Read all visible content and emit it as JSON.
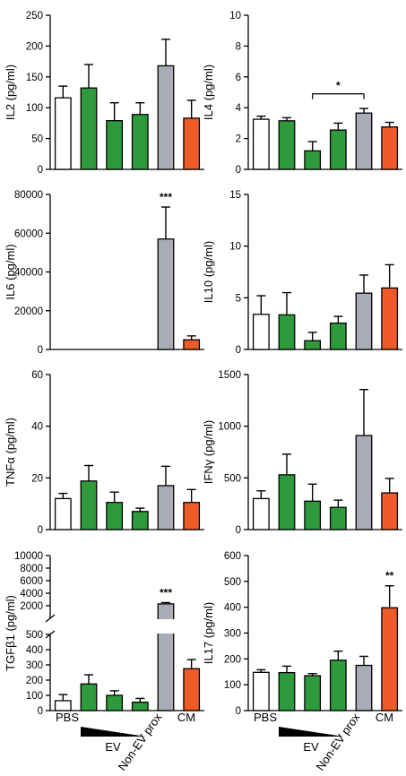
{
  "colors": {
    "pbs": "#ffffff",
    "ev": "#2e9a3c",
    "nonev": "#a9abb5",
    "cm": "#ef5a29",
    "axis": "#000000"
  },
  "x_labels": {
    "pbs": "PBS",
    "ev": "EV",
    "nonev": "Non-EV prox",
    "cm": "CM"
  },
  "chart_data": [
    {
      "type": "bar",
      "ylabel": "IL2 (pg/ml)",
      "ylim": [
        0,
        250
      ],
      "yticks": [
        0,
        50,
        100,
        150,
        200,
        250
      ],
      "values": [
        116,
        132,
        79,
        89,
        168,
        83
      ],
      "errors": [
        19,
        38,
        29,
        19,
        43,
        29
      ],
      "annotations": []
    },
    {
      "type": "bar",
      "ylabel": "IL4 (pg/ml)",
      "ylim": [
        0,
        10
      ],
      "yticks": [
        0,
        2,
        4,
        6,
        8,
        10
      ],
      "values": [
        3.25,
        3.15,
        1.2,
        2.55,
        3.65,
        2.75
      ],
      "errors": [
        0.2,
        0.2,
        0.6,
        0.45,
        0.3,
        0.3
      ],
      "annotations": [
        {
          "type": "bracket",
          "from": 2,
          "to": 4,
          "y": 4.9,
          "text": "*"
        }
      ]
    },
    {
      "type": "bar",
      "ylabel": "IL6 (pg/ml)",
      "ylim": [
        0,
        80000
      ],
      "yticks": [
        0,
        20000,
        40000,
        60000,
        80000
      ],
      "values": [
        0,
        0,
        0,
        0,
        57000,
        5000
      ],
      "errors": [
        0,
        0,
        0,
        0,
        16500,
        2000
      ],
      "annotations": [
        {
          "type": "star",
          "bar": 4,
          "text": "***"
        }
      ]
    },
    {
      "type": "bar",
      "ylabel": "IL10 (pg/ml)",
      "ylim": [
        0,
        15
      ],
      "yticks": [
        0,
        5,
        10,
        15
      ],
      "values": [
        3.4,
        3.35,
        0.85,
        2.55,
        5.45,
        5.95
      ],
      "errors": [
        1.8,
        2.15,
        0.8,
        0.65,
        1.75,
        2.25
      ],
      "annotations": []
    },
    {
      "type": "bar",
      "ylabel": "TNFα (pg/ml)",
      "ylim": [
        0,
        60
      ],
      "yticks": [
        0,
        20,
        40,
        60
      ],
      "values": [
        12,
        18.8,
        10.5,
        7,
        17,
        10.5
      ],
      "errors": [
        2,
        6,
        4,
        1.3,
        7.5,
        5
      ],
      "annotations": []
    },
    {
      "type": "bar",
      "ylabel": "IFNγ (pg/ml)",
      "ylim": [
        0,
        1500
      ],
      "yticks": [
        0,
        500,
        1000,
        1500
      ],
      "values": [
        300,
        530,
        275,
        215,
        910,
        355
      ],
      "errors": [
        75,
        200,
        165,
        70,
        445,
        140
      ],
      "annotations": []
    },
    {
      "type": "bar",
      "ylabel": "TGFβ1 (pg/ml)",
      "broken_axis": true,
      "ylim_lower": [
        0,
        500
      ],
      "yticks_lower": [
        0,
        100,
        200,
        300,
        400,
        500
      ],
      "ylim_upper": [
        0,
        10000
      ],
      "yticks_upper": [
        0,
        2000,
        4000,
        6000,
        8000,
        10000
      ],
      "values": [
        65,
        175,
        100,
        55,
        2300,
        275
      ],
      "errors": [
        40,
        60,
        30,
        25,
        200,
        60
      ],
      "annotations": [
        {
          "type": "star",
          "bar": 4,
          "text": "***"
        }
      ]
    },
    {
      "type": "bar",
      "ylabel": "IL17 (pg/ml)",
      "ylim": [
        0,
        600
      ],
      "yticks": [
        0,
        100,
        200,
        300,
        400,
        500,
        600
      ],
      "values": [
        148,
        147,
        135,
        195,
        175,
        398
      ],
      "errors": [
        10,
        25,
        8,
        35,
        35,
        85
      ],
      "annotations": [
        {
          "type": "star",
          "bar": 5,
          "text": "**"
        }
      ]
    }
  ]
}
